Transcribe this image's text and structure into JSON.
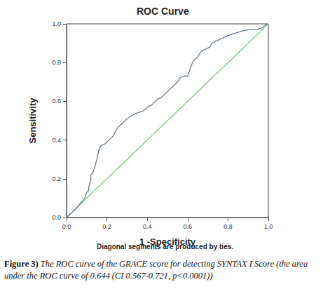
{
  "chart_data": {
    "type": "line",
    "title": "ROC Curve",
    "xlabel": "1 -Specificity",
    "ylabel": "Sensitivity",
    "annotations": [
      "Diagonal segments are produced by ties."
    ],
    "caption_label": "Figure 3)",
    "caption": "The ROC curve of the GRACE score for detecting SYNTAX I Score (the area under the ROC curve of 0.644 (CI 0.567-0.721, p<0.0001))",
    "xlim": [
      0,
      1
    ],
    "ylim": [
      0,
      1
    ],
    "xticks": [
      {
        "value": 0,
        "label": "0.0"
      },
      {
        "value": 0.2,
        "label": "0.2"
      },
      {
        "value": 0.4,
        "label": "0.4"
      },
      {
        "value": 0.6,
        "label": "0.6"
      },
      {
        "value": 0.8,
        "label": "0.8"
      },
      {
        "value": 1,
        "label": "1.0"
      }
    ],
    "yticks": [
      {
        "value": 0,
        "label": "0.0"
      },
      {
        "value": 0.2,
        "label": "0.2"
      },
      {
        "value": 0.4,
        "label": "0.4"
      },
      {
        "value": 0.6,
        "label": "0.6"
      },
      {
        "value": 0.8,
        "label": "0.8"
      },
      {
        "value": 1,
        "label": "1.0"
      }
    ],
    "grid": false,
    "series": [
      {
        "type": "line",
        "color": "#6b7a93",
        "x": [
          0,
          0.05,
          0.09,
          0.1,
          0.11,
          0.11,
          0.12,
          0.12,
          0.13,
          0.14,
          0.15,
          0.16,
          0.17,
          0.19,
          0.21,
          0.23,
          0.25,
          0.27,
          0.3,
          0.33,
          0.35,
          0.38,
          0.4,
          0.42,
          0.43,
          0.45,
          0.47,
          0.49,
          0.51,
          0.53,
          0.55,
          0.56,
          0.58,
          0.6,
          0.61,
          0.62,
          0.63,
          0.65,
          0.67,
          0.69,
          0.71,
          0.72,
          0.74,
          0.76,
          0.78,
          0.8,
          0.83,
          0.86,
          0.9,
          0.94,
          0.97,
          0.98,
          1.0
        ],
        "values": [
          0,
          0.05,
          0.1,
          0.13,
          0.14,
          0.16,
          0.19,
          0.22,
          0.23,
          0.26,
          0.3,
          0.35,
          0.37,
          0.38,
          0.4,
          0.42,
          0.46,
          0.48,
          0.51,
          0.53,
          0.54,
          0.55,
          0.57,
          0.58,
          0.59,
          0.61,
          0.62,
          0.64,
          0.66,
          0.68,
          0.7,
          0.72,
          0.73,
          0.73,
          0.76,
          0.79,
          0.81,
          0.83,
          0.86,
          0.87,
          0.88,
          0.9,
          0.91,
          0.92,
          0.93,
          0.94,
          0.95,
          0.96,
          0.97,
          0.97,
          0.98,
          0.99,
          1.0
        ]
      },
      {
        "type": "line",
        "color": "#84c784",
        "x": [
          0,
          1
        ],
        "values": [
          0,
          1
        ]
      }
    ]
  }
}
